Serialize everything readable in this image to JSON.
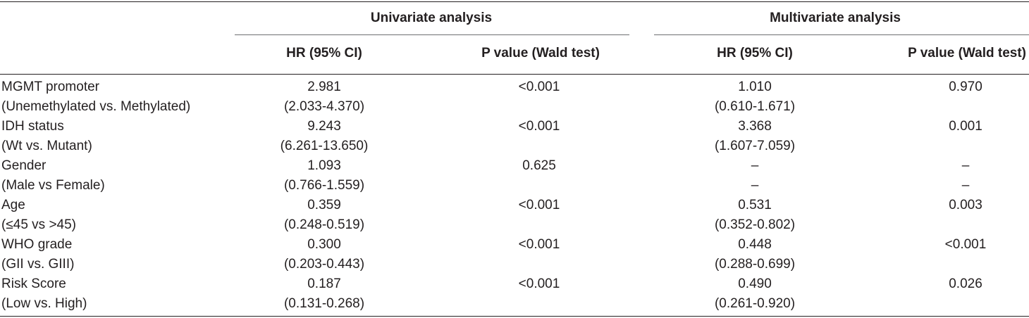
{
  "header": {
    "univariate": "Univariate analysis",
    "multivariate": "Multivariate analysis",
    "uni_hr": "HR (95% CI)",
    "uni_p": "P value (Wald test)",
    "multi_hr": "HR (95% CI)",
    "multi_p": "P value (Wald test)"
  },
  "rows": [
    {
      "var": "MGMT promoter",
      "sub": "(Unemethylated vs. Methylated)",
      "uni_hr": "2.981",
      "uni_ci": "(2.033-4.370)",
      "uni_p": "<0.001",
      "multi_hr": "1.010",
      "multi_ci": "(0.610-1.671)",
      "multi_p": "0.970"
    },
    {
      "var": "IDH status",
      "sub": "(Wt vs. Mutant)",
      "uni_hr": "9.243",
      "uni_ci": "(6.261-13.650)",
      "uni_p": "<0.001",
      "multi_hr": "3.368",
      "multi_ci": "(1.607-7.059)",
      "multi_p": "0.001"
    },
    {
      "var": "Gender",
      "sub": "(Male vs Female)",
      "uni_hr": "1.093",
      "uni_ci": "(0.766-1.559)",
      "uni_p": "0.625",
      "multi_hr": "–",
      "multi_ci": "–",
      "multi_p": "–",
      "multi_p2": "–"
    },
    {
      "var": "Age",
      "sub": "(≤45 vs >45)",
      "uni_hr": "0.359",
      "uni_ci": "(0.248-0.519)",
      "uni_p": "<0.001",
      "multi_hr": "0.531",
      "multi_ci": "(0.352-0.802)",
      "multi_p": "0.003"
    },
    {
      "var": "WHO grade",
      "sub": "(GII vs. GIII)",
      "uni_hr": "0.300",
      "uni_ci": "(0.203-0.443)",
      "uni_p": "<0.001",
      "multi_hr": "0.448",
      "multi_ci": "(0.288-0.699)",
      "multi_p": "<0.001"
    },
    {
      "var": "Risk Score",
      "sub": "(Low vs. High)",
      "uni_hr": "0.187",
      "uni_ci": "(0.131-0.268)",
      "uni_p": "<0.001",
      "multi_hr": "0.490",
      "multi_ci": "(0.261-0.920)",
      "multi_p": "0.026"
    }
  ]
}
